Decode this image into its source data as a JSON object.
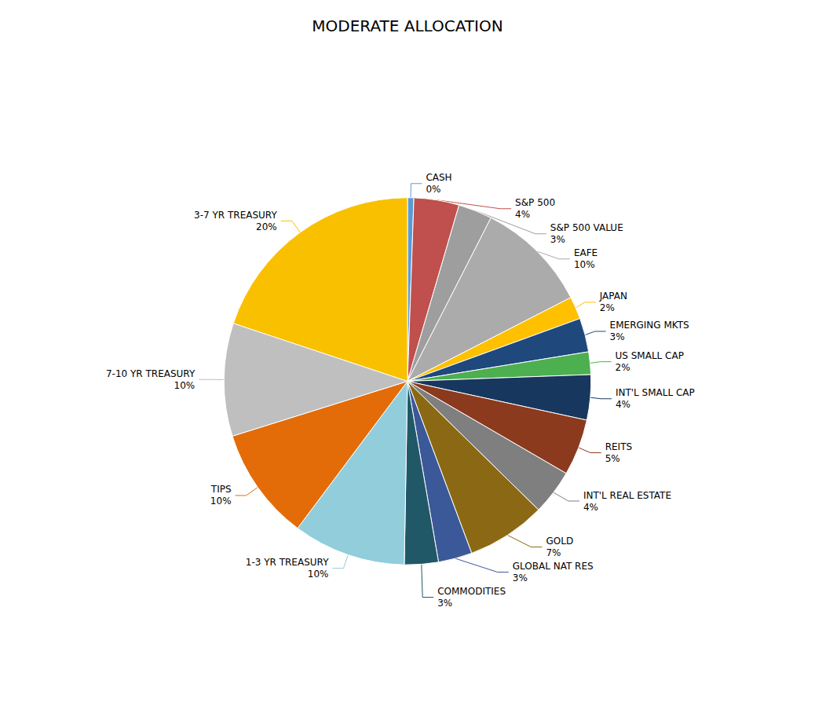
{
  "chart_data": {
    "type": "pie",
    "title": "MODERATE ALLOCATION",
    "categories": [
      "CASH",
      "S&P 500",
      "S&P 500 VALUE",
      "EAFE",
      "JAPAN",
      "EMERGING MKTS",
      "US SMALL CAP",
      "INT'L SMALL CAP",
      "REITS",
      "INT'L REAL ESTATE",
      "GOLD",
      "GLOBAL NAT RES",
      "COMMODITIES",
      "1-3 YR TREASURY",
      "TIPS",
      "7-10 YR TREASURY",
      "3-7 YR TREASURY"
    ],
    "values": [
      0,
      4,
      3,
      10,
      2,
      3,
      2,
      4,
      5,
      4,
      7,
      3,
      3,
      10,
      10,
      10,
      20
    ],
    "value_labels": [
      "0%",
      "4%",
      "3%",
      "10%",
      "2%",
      "3%",
      "2%",
      "4%",
      "5%",
      "4%",
      "7%",
      "3%",
      "3%",
      "10%",
      "10%",
      "10%",
      "20%"
    ],
    "colors": [
      "#5B9BD5",
      "#C0504D",
      "#9E9E9E",
      "#ABABAB",
      "#FFC000",
      "#1F497D",
      "#4CAF50",
      "#17375E",
      "#8B3A1E",
      "#7F7F7F",
      "#8B6914",
      "#3B5998",
      "#215868",
      "#92CDDC",
      "#E36C09",
      "#BFBFBF",
      "#F9C000"
    ],
    "data_labels": true
  }
}
